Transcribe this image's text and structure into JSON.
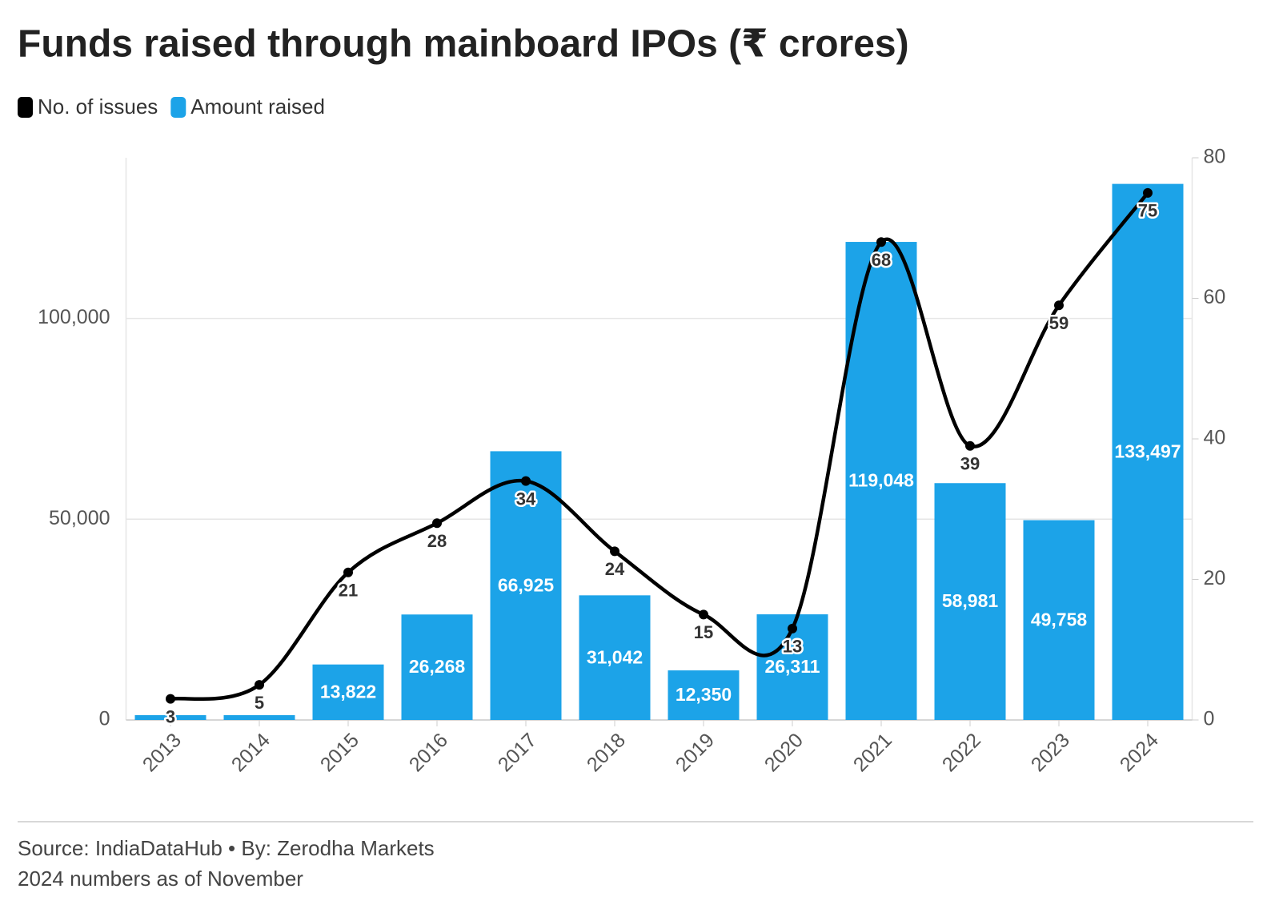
{
  "chart_data": {
    "type": "combo",
    "title": "Funds raised through mainboard IPOs (₹ crores)",
    "source": "Source: IndiaDataHub • By: Zerodha Markets",
    "note": "2024 numbers as of November",
    "categories": [
      "2013",
      "2014",
      "2015",
      "2016",
      "2017",
      "2018",
      "2019",
      "2020",
      "2021",
      "2022",
      "2023",
      "2024"
    ],
    "series": [
      {
        "name": "No. of issues",
        "type": "line",
        "axis": "y2",
        "color": "#000000",
        "values": [
          3,
          5,
          21,
          28,
          34,
          24,
          15,
          13,
          68,
          39,
          59,
          75
        ]
      },
      {
        "name": "Amount raised",
        "type": "bar",
        "color": "#1ca3e8",
        "values": [
          1200,
          1200,
          13822,
          26268,
          66925,
          31042,
          12350,
          26311,
          119048,
          58981,
          49758,
          133497
        ],
        "value_labels": [
          null,
          null,
          "13,822",
          "26,268",
          "66,925",
          "31,042",
          "12,350",
          "26,311",
          "119,048",
          "58,981",
          "49,758",
          "133,497"
        ]
      }
    ],
    "ylim": [
      0,
      140000
    ],
    "yticks": [
      0,
      {
        "value": 50000,
        "label": "50,000"
      },
      {
        "value": 100000,
        "label": "100,000"
      }
    ],
    "y2lim": [
      0,
      80
    ],
    "y2ticks": [
      0,
      20,
      40,
      60,
      80
    ],
    "grid": true
  }
}
